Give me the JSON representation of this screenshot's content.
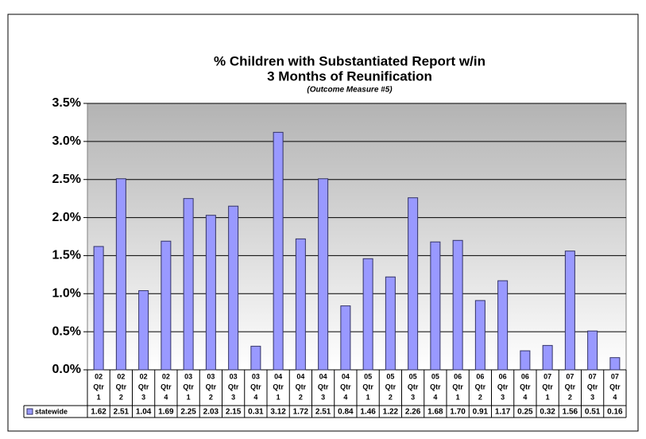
{
  "chart_data": {
    "type": "bar",
    "title": [
      "% Children with Substantiated Report w/in",
      "3 Months of Reunification"
    ],
    "subtitle": "(Outcome Measure #5)",
    "categories": [
      [
        "02",
        "Qtr",
        "1"
      ],
      [
        "02",
        "Qtr",
        "2"
      ],
      [
        "02",
        "Qtr",
        "3"
      ],
      [
        "02",
        "Qtr",
        "4"
      ],
      [
        "03",
        "Qtr",
        "1"
      ],
      [
        "03",
        "Qtr",
        "2"
      ],
      [
        "03",
        "Qtr",
        "3"
      ],
      [
        "03",
        "Qtr",
        "4"
      ],
      [
        "04",
        "Qtr",
        "1"
      ],
      [
        "04",
        "Qtr",
        "2"
      ],
      [
        "04",
        "Qtr",
        "3"
      ],
      [
        "04",
        "Qtr",
        "4"
      ],
      [
        "05",
        "Qtr",
        "1"
      ],
      [
        "05",
        "Qtr",
        "2"
      ],
      [
        "05",
        "Qtr",
        "3"
      ],
      [
        "05",
        "Qtr",
        "4"
      ],
      [
        "06",
        "Qtr",
        "1"
      ],
      [
        "06",
        "Qtr",
        "2"
      ],
      [
        "06",
        "Qtr",
        "3"
      ],
      [
        "06",
        "Qtr",
        "4"
      ],
      [
        "07",
        "Qtr",
        "1"
      ],
      [
        "07",
        "Qtr",
        "2"
      ],
      [
        "07",
        "Qtr",
        "3"
      ],
      [
        "07",
        "Qtr",
        "4"
      ]
    ],
    "series": [
      {
        "name": "statewide",
        "color": "#9999ff",
        "values": [
          1.62,
          2.51,
          1.04,
          1.69,
          2.25,
          2.03,
          2.15,
          0.31,
          3.12,
          1.72,
          2.51,
          0.84,
          1.46,
          1.22,
          2.26,
          1.68,
          1.7,
          0.91,
          1.17,
          0.25,
          0.32,
          1.56,
          0.51,
          0.16
        ],
        "value_labels": [
          "1.62",
          "2.51",
          "1.04",
          "1.69",
          "2.25",
          "2.03",
          "2.15",
          "0.31",
          "3.12",
          "1.72",
          "2.51",
          "0.84",
          "1.46",
          "1.22",
          "2.26",
          "1.68",
          "1.70",
          "0.91",
          "1.17",
          "0.25",
          "0.32",
          "1.56",
          "0.51",
          "0.16"
        ]
      }
    ],
    "ylim": [
      0,
      3.5
    ],
    "yticks": [
      {
        "value": 0,
        "label": "0.0%"
      },
      {
        "value": 0.5,
        "label": "0.5%"
      },
      {
        "value": 1,
        "label": "1.0%"
      },
      {
        "value": 1.5,
        "label": "1.5%"
      },
      {
        "value": 2,
        "label": "2.0%"
      },
      {
        "value": 2.5,
        "label": "2.5%"
      },
      {
        "value": 3,
        "label": "3.0%"
      },
      {
        "value": 3.5,
        "label": "3.5%"
      }
    ],
    "grid": true
  }
}
